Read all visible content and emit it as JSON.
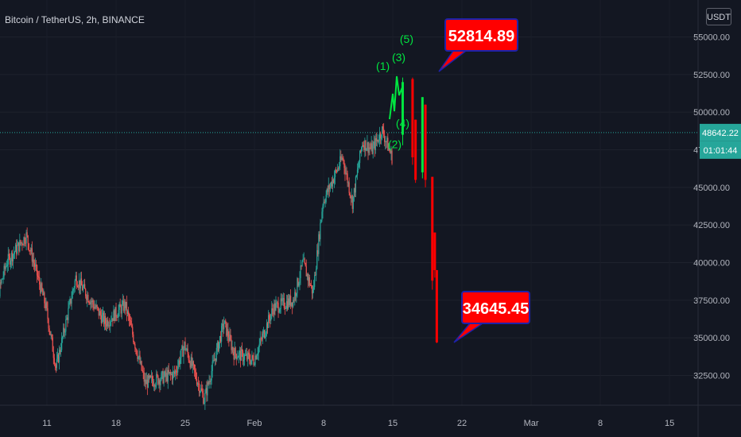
{
  "symbol_title": "Bitcoin / TetherUS, 2h, BINANCE",
  "currency": "USDT",
  "price_tag": "48642.22",
  "countdown_tag": "01:01:44",
  "colors": {
    "background": "#131722",
    "up": "#26a69a",
    "down": "#ef5350",
    "projection": "#ff0000",
    "wave_label": "#00e640",
    "callout_fill": "#ff0000",
    "callout_border": "#1e22aa"
  },
  "chart_data": {
    "type": "candlestick",
    "y_axis": {
      "ticks": [
        "32500.00",
        "35000.00",
        "37500.00",
        "40000.00",
        "42500.00",
        "45000.00",
        "47500.00",
        "50000.00",
        "52500.00",
        "55000.00"
      ],
      "ylim": [
        30500,
        56500
      ]
    },
    "x_axis": {
      "ticks": [
        "11",
        "18",
        "25",
        "Feb",
        "8",
        "15",
        "22",
        "Mar",
        "8",
        "15"
      ]
    },
    "current_price": 48642.22,
    "price_path": [
      [
        "2021-01-05",
        35000
      ],
      [
        "2021-01-07",
        40000
      ],
      [
        "2021-01-09",
        41800
      ],
      [
        "2021-01-11",
        37000
      ],
      [
        "2021-01-12",
        33000
      ],
      [
        "2021-01-14",
        39000
      ],
      [
        "2021-01-17",
        36000
      ],
      [
        "2021-01-19",
        37200
      ],
      [
        "2021-01-21",
        32000
      ],
      [
        "2021-01-24",
        32600
      ],
      [
        "2021-01-25",
        34500
      ],
      [
        "2021-01-27",
        30900
      ],
      [
        "2021-01-29",
        36000
      ],
      [
        "2021-01-30",
        34000
      ],
      [
        "2021-02-01",
        33500
      ],
      [
        "2021-02-03",
        37000
      ],
      [
        "2021-02-05",
        37500
      ],
      [
        "2021-02-06",
        40000
      ],
      [
        "2021-02-07",
        38000
      ],
      [
        "2021-02-08",
        44000
      ],
      [
        "2021-02-10",
        47000
      ],
      [
        "2021-02-11",
        44000
      ],
      [
        "2021-02-12",
        48000
      ],
      [
        "2021-02-13",
        47500
      ],
      [
        "2021-02-14",
        48800
      ],
      [
        "2021-02-15",
        47000
      ]
    ],
    "waves": [
      {
        "label": "(1)",
        "date": "2021-02-15",
        "price": 52800
      },
      {
        "label": "(2)",
        "date": "2021-02-15",
        "price": 47600
      },
      {
        "label": "(3)",
        "date": "2021-02-15",
        "price": 53400
      },
      {
        "label": "(4)",
        "date": "2021-02-16",
        "price": 49000
      },
      {
        "label": "(5)",
        "date": "2021-02-16",
        "price": 54600
      }
    ],
    "projection": [
      {
        "date": "2021-02-16",
        "open": 48500,
        "high": 52300,
        "low": 47800,
        "close": 52000
      },
      {
        "date": "2021-02-17",
        "open": 52200,
        "high": 52300,
        "low": 46500,
        "close": 47000
      },
      {
        "date": "2021-02-17",
        "open": 49500,
        "high": 49500,
        "low": 45300,
        "close": 45500
      },
      {
        "date": "2021-02-18",
        "open": 46000,
        "high": 51000,
        "low": 45600,
        "close": 51000
      },
      {
        "date": "2021-02-18",
        "open": 50500,
        "high": 50500,
        "low": 45000,
        "close": 45500
      },
      {
        "date": "2021-02-19",
        "open": 45700,
        "high": 45700,
        "low": 38200,
        "close": 38800
      },
      {
        "date": "2021-02-19",
        "open": 42000,
        "high": 42000,
        "low": 39000,
        "close": 39500
      },
      {
        "date": "2021-02-19",
        "open": 39500,
        "high": 39500,
        "low": 34645.45,
        "close": 34700
      }
    ],
    "annotations": [
      {
        "text": "52814.89",
        "price": 52814.89
      },
      {
        "text": "34645.45",
        "price": 34645.45
      }
    ]
  }
}
